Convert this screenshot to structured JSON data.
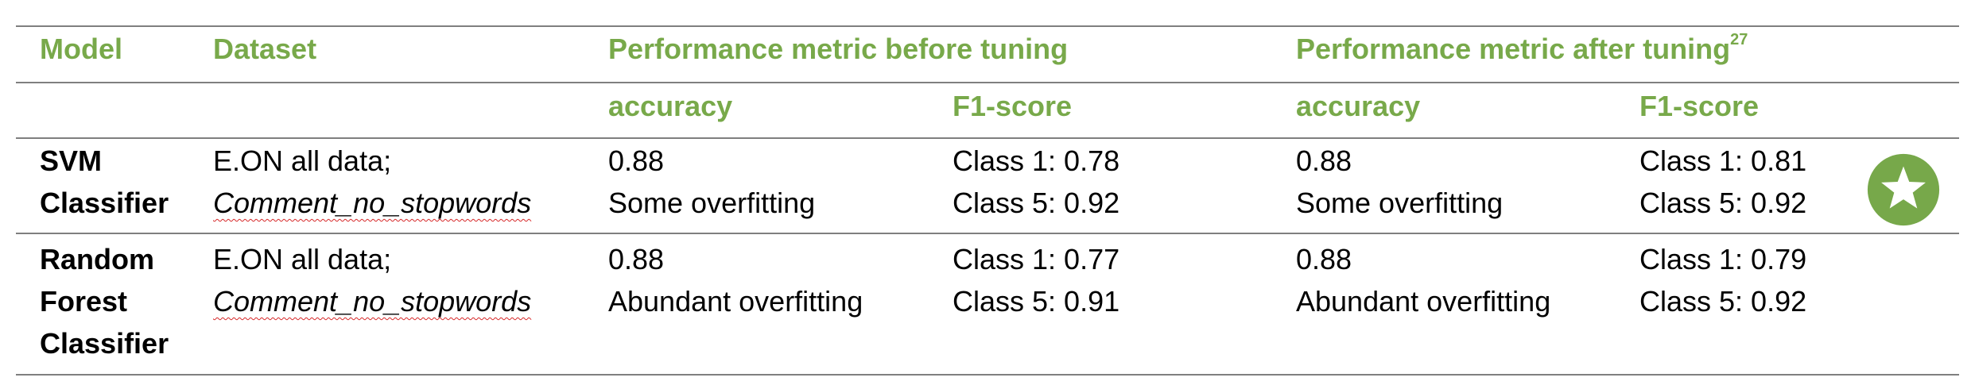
{
  "table": {
    "headers": {
      "model": "Model",
      "dataset": "Dataset",
      "before": "Performance metric before tuning",
      "after": "Performance metric after tuning",
      "after_footnote": "27"
    },
    "subheaders": {
      "before_accuracy": "accuracy",
      "before_f1": "F1-score",
      "after_accuracy": "accuracy",
      "after_f1": "F1-score"
    },
    "rows": [
      {
        "model_line1": "SVM",
        "model_line2": "Classifier",
        "dataset_line1": "E.ON all data;",
        "dataset_line2": "Comment_no_stopwords",
        "before_accuracy": "0.88",
        "before_note": "Some overfitting",
        "before_f1_class1": "Class 1: 0.78",
        "before_f1_class5": "Class 5: 0.92",
        "after_accuracy": "0.88",
        "after_note": "Some overfitting",
        "after_f1_class1": "Class 1: 0.81",
        "after_f1_class5": "Class 5: 0.92",
        "badge_icon": "star-icon"
      },
      {
        "model_line1": "Random",
        "model_line2": "Forest",
        "model_line3": "Classifier",
        "dataset_line1": "E.ON all data;",
        "dataset_line2": "Comment_no_stopwords",
        "before_accuracy": "0.88",
        "before_note": "Abundant overfitting",
        "before_f1_class1": "Class 1: 0.77",
        "before_f1_class5": "Class 5: 0.91",
        "after_accuracy": "0.88",
        "after_note": "Abundant overfitting",
        "after_f1_class1": "Class 1: 0.79",
        "after_f1_class5": "Class 5: 0.92"
      }
    ]
  },
  "colors": {
    "header_green": "#78a94a",
    "badge_green": "#77a84a",
    "rule_gray": "#7f7f7f",
    "spell_red": "#d62728"
  }
}
